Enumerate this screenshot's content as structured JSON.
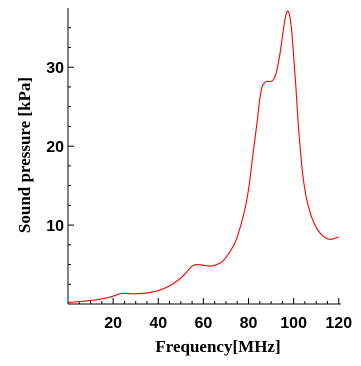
{
  "chart_data": {
    "type": "line",
    "title": "",
    "xlabel": "Frequency[MHz]",
    "ylabel": "Sound pressure [kPa]",
    "xlim": [
      0,
      121
    ],
    "ylim": [
      0,
      37.5
    ],
    "x_ticks": [
      20,
      40,
      60,
      80,
      100,
      120
    ],
    "x_tick_labels": [
      "20",
      "40",
      "60",
      "80",
      "100",
      "120"
    ],
    "y_ticks": [
      10,
      20,
      30
    ],
    "y_tick_labels": [
      "10",
      "20",
      "30"
    ],
    "grid": false,
    "legend": "none",
    "series": [
      {
        "color": "#ff0000",
        "x": [
          0,
          5,
          10,
          15,
          20,
          23,
          25,
          28,
          30,
          35,
          40,
          45,
          50,
          53,
          55,
          57,
          60,
          63,
          65,
          68,
          70,
          73,
          75,
          78,
          80,
          82,
          84,
          85,
          86,
          87,
          88,
          89,
          90,
          91,
          92,
          93,
          94,
          95,
          96,
          97,
          98,
          99,
          100,
          101,
          102,
          103,
          104,
          105,
          106,
          108,
          110,
          112,
          114,
          116,
          118,
          120
        ],
        "y": [
          0.2,
          0.3,
          0.45,
          0.65,
          1.0,
          1.3,
          1.35,
          1.3,
          1.3,
          1.4,
          1.7,
          2.3,
          3.3,
          4.2,
          4.8,
          5.0,
          4.9,
          4.8,
          4.9,
          5.3,
          5.9,
          7.2,
          8.5,
          11.5,
          14.5,
          19.0,
          23.5,
          26.0,
          27.5,
          28.0,
          28.2,
          28.2,
          28.2,
          28.4,
          29.0,
          30.2,
          31.8,
          33.8,
          35.8,
          37.0,
          36.8,
          35.0,
          31.5,
          27.5,
          23.0,
          19.5,
          16.5,
          14.5,
          13.0,
          11.0,
          9.7,
          8.9,
          8.4,
          8.2,
          8.3,
          8.5
        ]
      }
    ]
  }
}
